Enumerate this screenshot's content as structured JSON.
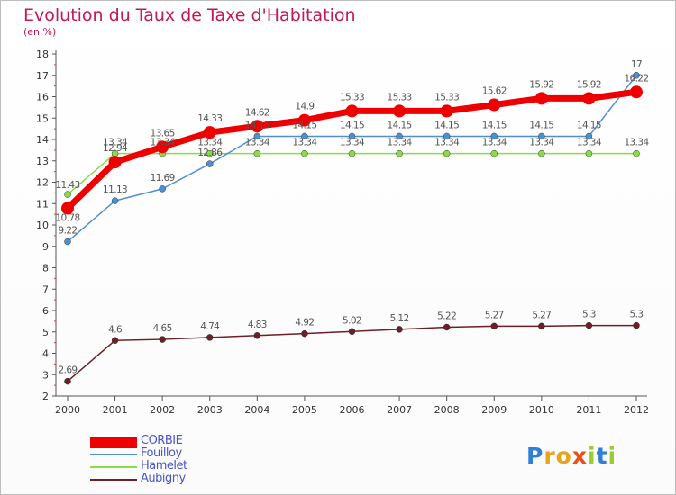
{
  "chart_data": {
    "type": "line",
    "title": "Evolution du Taux de Taxe d'Habitation",
    "subtitle": "(en %)",
    "xlabel": "",
    "ylabel": "",
    "ylim": [
      2,
      18
    ],
    "yticks": [
      "2",
      "3",
      "4",
      "5",
      "6",
      "7",
      "8",
      "9",
      "10",
      "11",
      "12",
      "13",
      "14",
      "15",
      "16",
      "17",
      "18"
    ],
    "x": [
      "2000",
      "2001",
      "2002",
      "2003",
      "2004",
      "2005",
      "2006",
      "2007",
      "2008",
      "2009",
      "2010",
      "2011",
      "2012"
    ],
    "series": [
      {
        "name": "CORBIE",
        "color": "#ee0000",
        "values": [
          10.78,
          12.94,
          13.65,
          14.33,
          14.62,
          14.9,
          15.33,
          15.33,
          15.33,
          15.62,
          15.92,
          15.92,
          16.22
        ],
        "labels": [
          "10.78",
          "12.94",
          "13.65",
          "14.33",
          "14.62",
          "14.9",
          "15.33",
          "15.33",
          "15.33",
          "15.62",
          "15.92",
          "15.92",
          "16.22"
        ]
      },
      {
        "name": "Fouilloy",
        "color": "#4f8fd0",
        "values": [
          9.22,
          11.13,
          11.69,
          12.86,
          14.15,
          14.15,
          14.15,
          14.15,
          14.15,
          14.15,
          14.15,
          14.15,
          17
        ],
        "labels": [
          "9.22",
          "11.13",
          "11.69",
          "12.86",
          "14.15",
          "14.15",
          "14.15",
          "14.15",
          "14.15",
          "14.15",
          "14.15",
          "14.15",
          "17"
        ]
      },
      {
        "name": "Hamelet",
        "color": "#88dd44",
        "values": [
          11.43,
          13.34,
          13.34,
          13.34,
          13.34,
          13.34,
          13.34,
          13.34,
          13.34,
          13.34,
          13.34,
          13.34,
          13.34
        ],
        "labels": [
          "11.43",
          "13.34",
          "13.34",
          "13.34",
          "13.34",
          "13.34",
          "13.34",
          "13.34",
          "13.34",
          "13.34",
          "13.34",
          "13.34",
          "13.34"
        ]
      },
      {
        "name": "Aubigny",
        "color": "#6b1f26",
        "values": [
          2.69,
          4.6,
          4.65,
          4.74,
          4.83,
          4.92,
          5.02,
          5.12,
          5.22,
          5.27,
          5.27,
          5.3,
          5.3
        ],
        "labels": [
          "2.69",
          "4.6",
          "4.65",
          "4.74",
          "4.83",
          "4.92",
          "5.02",
          "5.12",
          "5.22",
          "5.27",
          "5.27",
          "5.3",
          "5.3"
        ]
      }
    ],
    "legend_position": "bottom-left",
    "grid": false
  },
  "brand": {
    "text": "Proxiti"
  }
}
